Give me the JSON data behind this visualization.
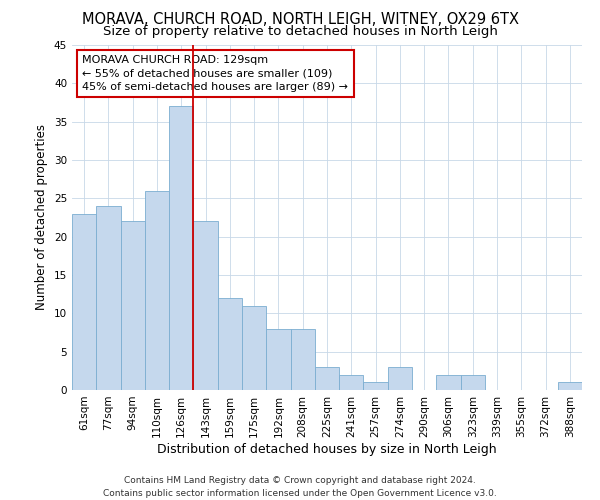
{
  "title": "MORAVA, CHURCH ROAD, NORTH LEIGH, WITNEY, OX29 6TX",
  "subtitle": "Size of property relative to detached houses in North Leigh",
  "xlabel": "Distribution of detached houses by size in North Leigh",
  "ylabel": "Number of detached properties",
  "categories": [
    "61sqm",
    "77sqm",
    "94sqm",
    "110sqm",
    "126sqm",
    "143sqm",
    "159sqm",
    "175sqm",
    "192sqm",
    "208sqm",
    "225sqm",
    "241sqm",
    "257sqm",
    "274sqm",
    "290sqm",
    "306sqm",
    "323sqm",
    "339sqm",
    "355sqm",
    "372sqm",
    "388sqm"
  ],
  "values": [
    23,
    24,
    22,
    26,
    37,
    22,
    12,
    11,
    8,
    8,
    3,
    2,
    1,
    3,
    0,
    2,
    2,
    0,
    0,
    0,
    1
  ],
  "bar_color": "#c5d8ed",
  "bar_edge_color": "#7badd1",
  "annotation_text": "MORAVA CHURCH ROAD: 129sqm\n← 55% of detached houses are smaller (109)\n45% of semi-detached houses are larger (89) →",
  "vline_position": 4.5,
  "vline_color": "#cc0000",
  "annotation_box_edge_color": "#cc0000",
  "background_color": "#ffffff",
  "grid_color": "#c8d8e8",
  "ylim": [
    0,
    45
  ],
  "yticks": [
    0,
    5,
    10,
    15,
    20,
    25,
    30,
    35,
    40,
    45
  ],
  "footnote": "Contains HM Land Registry data © Crown copyright and database right 2024.\nContains public sector information licensed under the Open Government Licence v3.0.",
  "title_fontsize": 10.5,
  "subtitle_fontsize": 9.5,
  "xlabel_fontsize": 9,
  "ylabel_fontsize": 8.5,
  "tick_fontsize": 7.5,
  "annotation_fontsize": 8,
  "footnote_fontsize": 6.5
}
